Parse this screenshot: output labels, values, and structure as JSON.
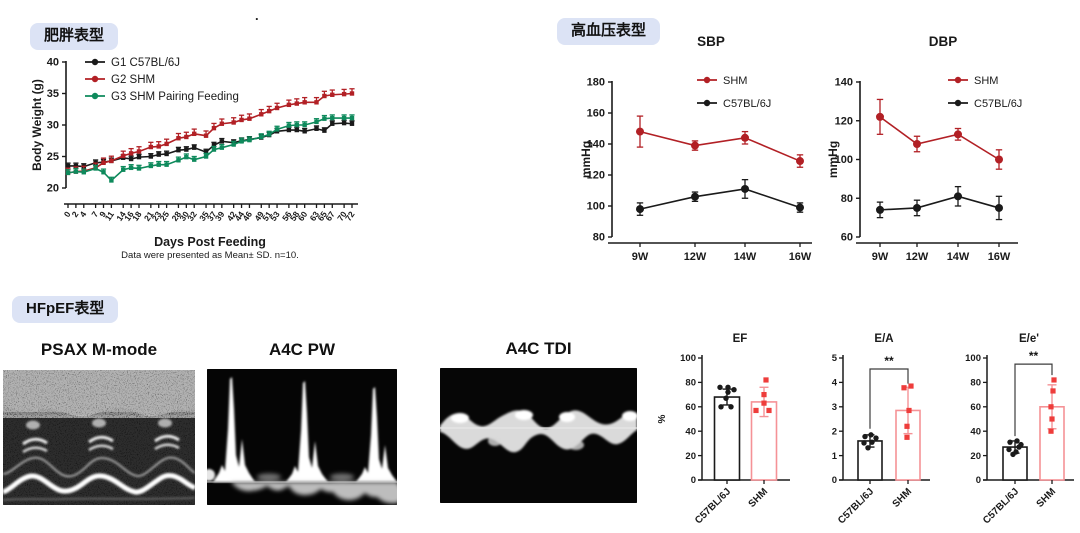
{
  "sections": {
    "obesity": {
      "badge": "肥胖表型"
    },
    "hypertension": {
      "badge": "高血压表型"
    },
    "hfpef": {
      "badge": "HFpEF表型"
    }
  },
  "stray_dot": ".",
  "echo_panels": [
    {
      "title": "PSAX M-mode"
    },
    {
      "title": "A4C PW"
    },
    {
      "title": "A4C TDI"
    }
  ],
  "colors": {
    "badge_bg": "#dce3f5",
    "black_series": "#1a1a1a",
    "dark_red": "#b22025",
    "green": "#0e8a5c",
    "salmon": "#f59296",
    "bright_red": "#ee3d3b",
    "sig_bracket": "#3c3c3c"
  },
  "chart_data": [
    {
      "id": "body_weight",
      "type": "line",
      "title": "",
      "xlabel": "Days Post Feeding",
      "ylabel": "Body Weight (g)",
      "caption": "Data were presented as Mean± SD. n=10.",
      "x": [
        0,
        2,
        4,
        7,
        9,
        11,
        14,
        16,
        18,
        21,
        23,
        25,
        28,
        30,
        32,
        35,
        37,
        39,
        42,
        44,
        46,
        49,
        51,
        53,
        56,
        58,
        60,
        63,
        65,
        67,
        70,
        72
      ],
      "ylim": [
        20,
        40
      ],
      "yticks": [
        20,
        25,
        30,
        35,
        40
      ],
      "grid": false,
      "legend_position": "top-left",
      "series": [
        {
          "name": "G1 C57BL/6J",
          "color": "#1a1a1a",
          "err": 0.45,
          "values": [
            23.5,
            23.5,
            23.4,
            24.0,
            24.1,
            24.3,
            24.8,
            24.6,
            24.9,
            25.0,
            25.3,
            25.4,
            26.0,
            26.1,
            26.4,
            25.7,
            26.8,
            27.4,
            27.2,
            27.5,
            27.7,
            28.0,
            28.4,
            29.0,
            29.2,
            29.2,
            29.0,
            29.4,
            29.1,
            30.2,
            30.3,
            30.2
          ]
        },
        {
          "name": "G2 SHM",
          "color": "#b22025",
          "err": 0.75,
          "values": [
            22.4,
            22.6,
            22.7,
            23.2,
            24.0,
            24.3,
            25.1,
            25.5,
            25.8,
            26.5,
            26.6,
            27.0,
            27.9,
            28.1,
            28.6,
            28.3,
            29.5,
            30.2,
            30.4,
            30.8,
            31.0,
            31.7,
            32.2,
            32.7,
            33.2,
            33.4,
            33.6,
            33.6,
            34.6,
            34.8,
            34.9,
            35.0
          ]
        },
        {
          "name": "G3 SHM Pairing Feeding",
          "color": "#0e8a5c",
          "err": 0.5,
          "values": [
            22.4,
            22.6,
            22.5,
            23.1,
            22.5,
            21.2,
            22.9,
            23.2,
            23.1,
            23.5,
            23.7,
            23.7,
            24.4,
            24.9,
            24.5,
            25.0,
            26.1,
            26.4,
            26.9,
            27.4,
            27.6,
            28.1,
            28.5,
            29.3,
            29.9,
            30.0,
            30.0,
            30.5,
            31.0,
            31.1,
            31.1,
            31.1
          ]
        }
      ]
    },
    {
      "id": "sbp",
      "type": "line",
      "title": "SBP",
      "ylabel": "mmHg",
      "categories": [
        "9W",
        "12W",
        "14W",
        "16W"
      ],
      "ylim": [
        80,
        180
      ],
      "yticks": [
        80,
        100,
        120,
        140,
        160,
        180
      ],
      "legend_position": "top-right",
      "series": [
        {
          "name": "SHM",
          "color": "#b22025",
          "values": [
            148,
            139,
            144,
            129
          ],
          "err": [
            10,
            3,
            4,
            4
          ]
        },
        {
          "name": "C57BL/6J",
          "color": "#1a1a1a",
          "values": [
            98,
            106,
            111,
            99
          ],
          "err": [
            4,
            3,
            6,
            3
          ]
        }
      ]
    },
    {
      "id": "dbp",
      "type": "line",
      "title": "DBP",
      "ylabel": "mmHg",
      "categories": [
        "9W",
        "12W",
        "14W",
        "16W"
      ],
      "ylim": [
        60,
        140
      ],
      "yticks": [
        60,
        80,
        100,
        120,
        140
      ],
      "legend_position": "top-right",
      "series": [
        {
          "name": "SHM",
          "color": "#b22025",
          "values": [
            122,
            108,
            113,
            100
          ],
          "err": [
            9,
            4,
            3,
            5
          ]
        },
        {
          "name": "C57BL/6J",
          "color": "#1a1a1a",
          "values": [
            74,
            75,
            81,
            75
          ],
          "err": [
            4,
            4,
            5,
            6
          ]
        }
      ]
    },
    {
      "id": "ef",
      "type": "bar",
      "title": "EF",
      "ylabel": "%",
      "categories": [
        "C57BL/6J",
        "SHM"
      ],
      "ylim": [
        0,
        100
      ],
      "yticks": [
        0,
        20,
        40,
        60,
        80,
        100
      ],
      "sig": null,
      "bars": [
        {
          "label": "C57BL/6J",
          "color": "#1a1a1a",
          "point_shape": "circle",
          "value": 68,
          "err": 6.5,
          "points": [
            [
              -7,
              76
            ],
            [
              1,
              76
            ],
            [
              7,
              74
            ],
            [
              1,
              72
            ],
            [
              -1,
              67
            ],
            [
              -6,
              60
            ],
            [
              4,
              60
            ]
          ]
        },
        {
          "label": "SHM",
          "color": "#f59296",
          "point_color": "#ee3d3b",
          "point_shape": "square",
          "value": 64,
          "err": 12,
          "points": [
            [
              2,
              82
            ],
            [
              0,
              70
            ],
            [
              0,
              63
            ],
            [
              -8,
              57
            ],
            [
              5,
              57
            ]
          ]
        }
      ]
    },
    {
      "id": "ea",
      "type": "bar",
      "title": "E/A",
      "ylabel": "",
      "categories": [
        "C57BL/6J",
        "SHM"
      ],
      "ylim": [
        0,
        5
      ],
      "yticks": [
        0,
        1,
        2,
        3,
        4,
        5
      ],
      "sig": "**",
      "bars": [
        {
          "label": "C57BL/6J",
          "color": "#1a1a1a",
          "point_shape": "circle",
          "value": 1.6,
          "err": 0.25,
          "points": [
            [
              -5,
              1.78
            ],
            [
              1,
              1.85
            ],
            [
              6,
              1.72
            ],
            [
              -6,
              1.52
            ],
            [
              2,
              1.55
            ],
            [
              -2,
              1.32
            ]
          ]
        },
        {
          "label": "SHM",
          "color": "#f59296",
          "point_color": "#ee3d3b",
          "point_shape": "square",
          "value": 2.85,
          "err": 0.95,
          "points": [
            [
              3,
              3.85
            ],
            [
              -4,
              3.78
            ],
            [
              1,
              2.85
            ],
            [
              -1,
              2.2
            ],
            [
              -1,
              1.75
            ]
          ]
        }
      ]
    },
    {
      "id": "eeprime",
      "type": "bar",
      "title": "E/e'",
      "ylabel": "",
      "categories": [
        "C57BL/6J",
        "SHM"
      ],
      "ylim": [
        0,
        100
      ],
      "yticks": [
        0,
        20,
        40,
        60,
        80,
        100
      ],
      "sig": "**",
      "bars": [
        {
          "label": "C57BL/6J",
          "color": "#1a1a1a",
          "point_shape": "circle",
          "value": 27,
          "err": 5,
          "points": [
            [
              -5,
              31
            ],
            [
              2,
              32
            ],
            [
              6,
              29
            ],
            [
              -6,
              25
            ],
            [
              1,
              23
            ],
            [
              -2,
              21
            ],
            [
              4,
              27
            ]
          ]
        },
        {
          "label": "SHM",
          "color": "#f59296",
          "point_color": "#ee3d3b",
          "point_shape": "square",
          "value": 60,
          "err": 18,
          "points": [
            [
              2,
              82
            ],
            [
              1,
              73
            ],
            [
              -1,
              60
            ],
            [
              0,
              50
            ],
            [
              -1,
              40
            ]
          ]
        }
      ]
    }
  ]
}
